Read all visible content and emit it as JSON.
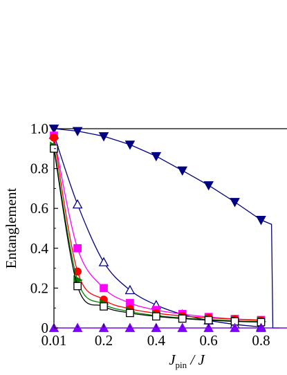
{
  "chart_data": {
    "type": "line",
    "xlabel_main": "J",
    "xlabel_sub": "pin",
    "xlabel_rest": " / J",
    "ylabel": "Entanglement",
    "xlim": [
      0.01,
      0.87
    ],
    "ylim": [
      0,
      1.0
    ],
    "x_ticks": [
      0.01,
      0.2,
      0.4,
      0.6,
      0.8
    ],
    "x_tick_labels": [
      "0.01",
      "0.2",
      "0.4",
      "0.6",
      "0.8"
    ],
    "y_ticks": [
      0,
      0.2,
      0.4,
      0.6,
      0.8,
      1.0
    ],
    "y_tick_labels": [
      "0",
      "0.2",
      "0.4",
      "0.6",
      "0.8",
      "1.0"
    ],
    "grid": false,
    "series": [
      {
        "color": "#000080",
        "marker": "triangle-down",
        "filled": true,
        "x": [
          0.01,
          0.1,
          0.2,
          0.3,
          0.4,
          0.5,
          0.6,
          0.7,
          0.8
        ],
        "y": [
          1.0,
          0.988,
          0.962,
          0.92,
          0.862,
          0.79,
          0.716,
          0.632,
          0.542
        ],
        "line_x": [
          0.01,
          0.1,
          0.2,
          0.3,
          0.4,
          0.5,
          0.6,
          0.7,
          0.8,
          0.84,
          0.845,
          0.87
        ],
        "line_y": [
          1.0,
          0.988,
          0.962,
          0.92,
          0.862,
          0.79,
          0.716,
          0.632,
          0.542,
          0.52,
          0.0,
          0.0
        ]
      },
      {
        "color": "#000080",
        "marker": "triangle-up",
        "filled": false,
        "x": [
          0.01,
          0.1,
          0.2,
          0.3,
          0.4,
          0.5,
          0.6,
          0.7,
          0.8
        ],
        "y": [
          0.97,
          0.62,
          0.33,
          0.19,
          0.115,
          0.068,
          0.038,
          0.018,
          0.005
        ]
      },
      {
        "color": "#ff00ff",
        "marker": "square",
        "filled": true,
        "x": [
          0.01,
          0.1,
          0.2,
          0.3,
          0.4,
          0.5,
          0.6,
          0.7,
          0.8
        ],
        "y": [
          0.965,
          0.4,
          0.2,
          0.125,
          0.09,
          0.07,
          0.055,
          0.045,
          0.04
        ]
      },
      {
        "color": "#ff0000",
        "marker": "circle",
        "filled": true,
        "x": [
          0.01,
          0.1,
          0.2,
          0.3,
          0.4,
          0.5,
          0.6,
          0.7,
          0.8
        ],
        "y": [
          0.955,
          0.283,
          0.142,
          0.096,
          0.074,
          0.06,
          0.051,
          0.044,
          0.038
        ]
      },
      {
        "color": "#008000",
        "marker": "triangle-right",
        "filled": true,
        "x": [
          0.01,
          0.1,
          0.2,
          0.3,
          0.4,
          0.5,
          0.6,
          0.7,
          0.8
        ],
        "y": [
          0.91,
          0.24,
          0.12,
          0.082,
          0.062,
          0.05,
          0.042,
          0.036,
          0.032
        ]
      },
      {
        "color": "#000000",
        "marker": "square",
        "filled": false,
        "x": [
          0.01,
          0.1,
          0.2,
          0.3,
          0.4,
          0.5,
          0.6,
          0.7,
          0.8
        ],
        "y": [
          0.9,
          0.21,
          0.108,
          0.075,
          0.058,
          0.047,
          0.039,
          0.033,
          0.029
        ]
      },
      {
        "color": "#8000ff",
        "marker": "triangle-up",
        "filled": true,
        "x": [
          0.01,
          0.1,
          0.2,
          0.3,
          0.4,
          0.5,
          0.6,
          0.7,
          0.8
        ],
        "y": [
          0,
          0,
          0,
          0,
          0,
          0,
          0,
          0,
          0
        ]
      }
    ]
  }
}
